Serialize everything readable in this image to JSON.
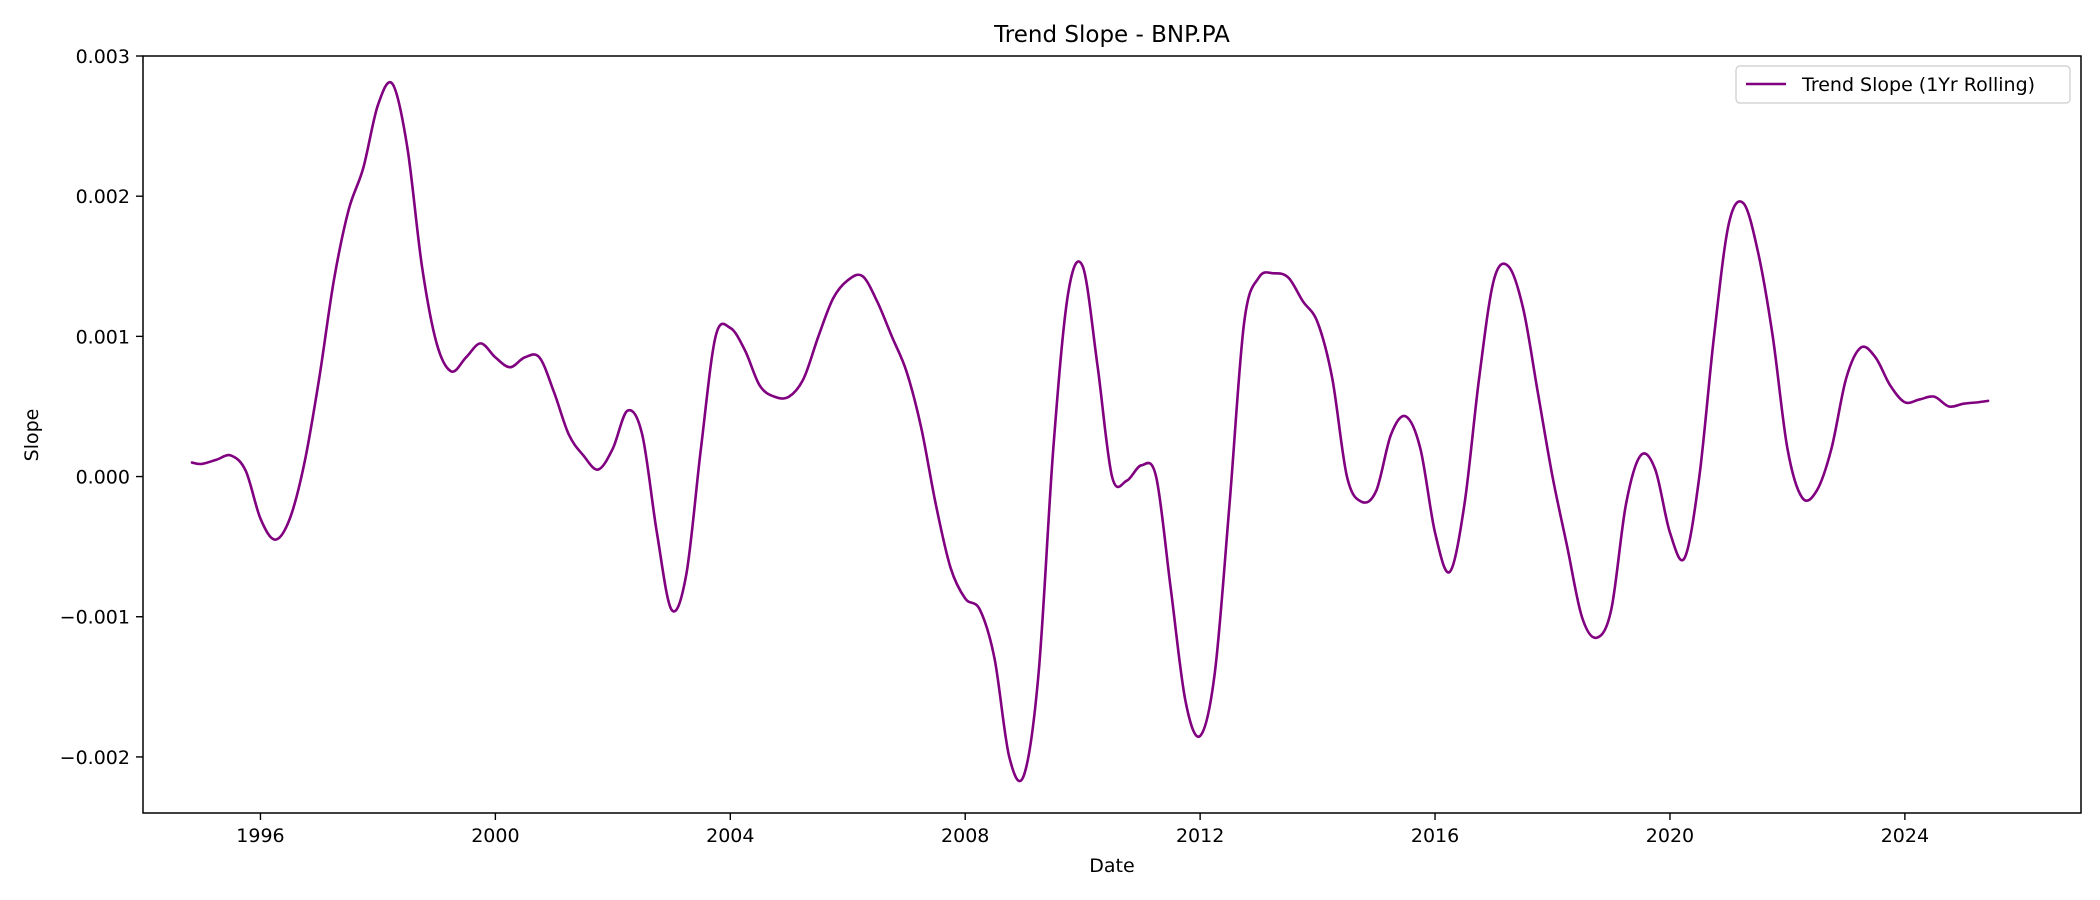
{
  "chart_data": {
    "type": "line",
    "title": "Trend Slope - BNP.PA",
    "xlabel": "Date",
    "ylabel": "Slope",
    "xlim": [
      "1994-01-01",
      "2026-12-31"
    ],
    "ylim": [
      -0.0024,
      0.003
    ],
    "x_ticks": [
      "1996-01-01",
      "2000-01-01",
      "2004-01-01",
      "2008-01-01",
      "2012-01-01",
      "2016-01-01",
      "2020-01-01",
      "2024-01-01"
    ],
    "x_tick_labels": [
      "1996",
      "2000",
      "2004",
      "2008",
      "2012",
      "2016",
      "2020",
      "2024"
    ],
    "y_ticks": [
      -0.002,
      -0.001,
      0.0,
      0.001,
      0.002,
      0.003
    ],
    "y_tick_labels": [
      "−0.002",
      "−0.001",
      "0.000",
      "0.001",
      "0.002",
      "0.003"
    ],
    "grid": false,
    "legend_position": "upper right",
    "series": [
      {
        "name": "Trend Slope (1Yr Rolling)",
        "color": "#800080",
        "x": [
          "1994-11",
          "1995-01",
          "1995-04",
          "1995-07",
          "1995-10",
          "1996-01",
          "1996-04",
          "1996-07",
          "1996-10",
          "1997-01",
          "1997-04",
          "1997-07",
          "1997-10",
          "1998-01",
          "1998-04",
          "1998-07",
          "1998-10",
          "1999-01",
          "1999-04",
          "1999-07",
          "1999-10",
          "2000-01",
          "2000-04",
          "2000-07",
          "2000-10",
          "2001-01",
          "2001-04",
          "2001-07",
          "2001-10",
          "2002-01",
          "2002-04",
          "2002-07",
          "2002-10",
          "2003-01",
          "2003-04",
          "2003-07",
          "2003-10",
          "2004-01",
          "2004-04",
          "2004-07",
          "2004-10",
          "2005-01",
          "2005-04",
          "2005-07",
          "2005-10",
          "2006-01",
          "2006-04",
          "2006-07",
          "2006-10",
          "2007-01",
          "2007-04",
          "2007-07",
          "2007-10",
          "2008-01",
          "2008-04",
          "2008-07",
          "2008-10",
          "2009-01",
          "2009-04",
          "2009-07",
          "2009-10",
          "2010-01",
          "2010-04",
          "2010-07",
          "2010-10",
          "2011-01",
          "2011-04",
          "2011-07",
          "2011-10",
          "2012-01",
          "2012-04",
          "2012-07",
          "2012-10",
          "2013-01",
          "2013-04",
          "2013-07",
          "2013-10",
          "2014-01",
          "2014-04",
          "2014-07",
          "2014-10",
          "2015-01",
          "2015-04",
          "2015-07",
          "2015-10",
          "2016-01",
          "2016-04",
          "2016-07",
          "2016-10",
          "2017-01",
          "2017-04",
          "2017-07",
          "2017-10",
          "2018-01",
          "2018-04",
          "2018-07",
          "2018-10",
          "2019-01",
          "2019-04",
          "2019-07",
          "2019-10",
          "2020-01",
          "2020-04",
          "2020-07",
          "2020-10",
          "2021-01",
          "2021-04",
          "2021-07",
          "2021-10",
          "2022-01",
          "2022-04",
          "2022-07",
          "2022-10",
          "2023-01",
          "2023-04",
          "2023-07",
          "2023-10",
          "2024-01",
          "2024-04",
          "2024-07",
          "2024-10",
          "2025-01",
          "2025-04",
          "2025-06"
        ],
        "y": [
          0.0001,
          9e-05,
          0.00012,
          0.00015,
          4e-05,
          -0.0003,
          -0.00045,
          -0.0003,
          0.0001,
          0.0007,
          0.0014,
          0.0019,
          0.0022,
          0.00265,
          0.0028,
          0.00235,
          0.0015,
          0.00095,
          0.00075,
          0.00085,
          0.00095,
          0.00085,
          0.00078,
          0.00085,
          0.00085,
          0.0006,
          0.0003,
          0.00015,
          5e-05,
          0.0002,
          0.00047,
          0.0003,
          -0.0004,
          -0.00095,
          -0.0007,
          0.0002,
          0.001,
          0.00106,
          0.0009,
          0.00065,
          0.00057,
          0.00057,
          0.0007,
          0.001,
          0.00127,
          0.0014,
          0.00143,
          0.00125,
          0.001,
          0.00075,
          0.00035,
          -0.0002,
          -0.00065,
          -0.00087,
          -0.00095,
          -0.0013,
          -0.002,
          -0.00213,
          -0.0014,
          0.0002,
          0.0013,
          0.0015,
          0.0008,
          0.0,
          -3e-05,
          8e-05,
          0.0,
          -0.0008,
          -0.0016,
          -0.00185,
          -0.0014,
          -0.0002,
          0.0011,
          0.00142,
          0.00145,
          0.00142,
          0.00125,
          0.0011,
          0.0007,
          0.0,
          -0.00018,
          -0.0001,
          0.0003,
          0.00043,
          0.0002,
          -0.0004,
          -0.00068,
          -0.0002,
          0.0007,
          0.0014,
          0.0015,
          0.0012,
          0.0006,
          0.0,
          -0.0005,
          -0.001,
          -0.00115,
          -0.00095,
          -0.0002,
          0.00015,
          5e-05,
          -0.0004,
          -0.00058,
          0.0,
          0.001,
          0.0018,
          0.00195,
          0.0016,
          0.001,
          0.0002,
          -0.00015,
          -0.0001,
          0.0002,
          0.0007,
          0.00092,
          0.00085,
          0.00065,
          0.00053,
          0.00055,
          0.00057,
          0.0005,
          0.00052,
          0.00053,
          0.00054
        ]
      }
    ]
  }
}
